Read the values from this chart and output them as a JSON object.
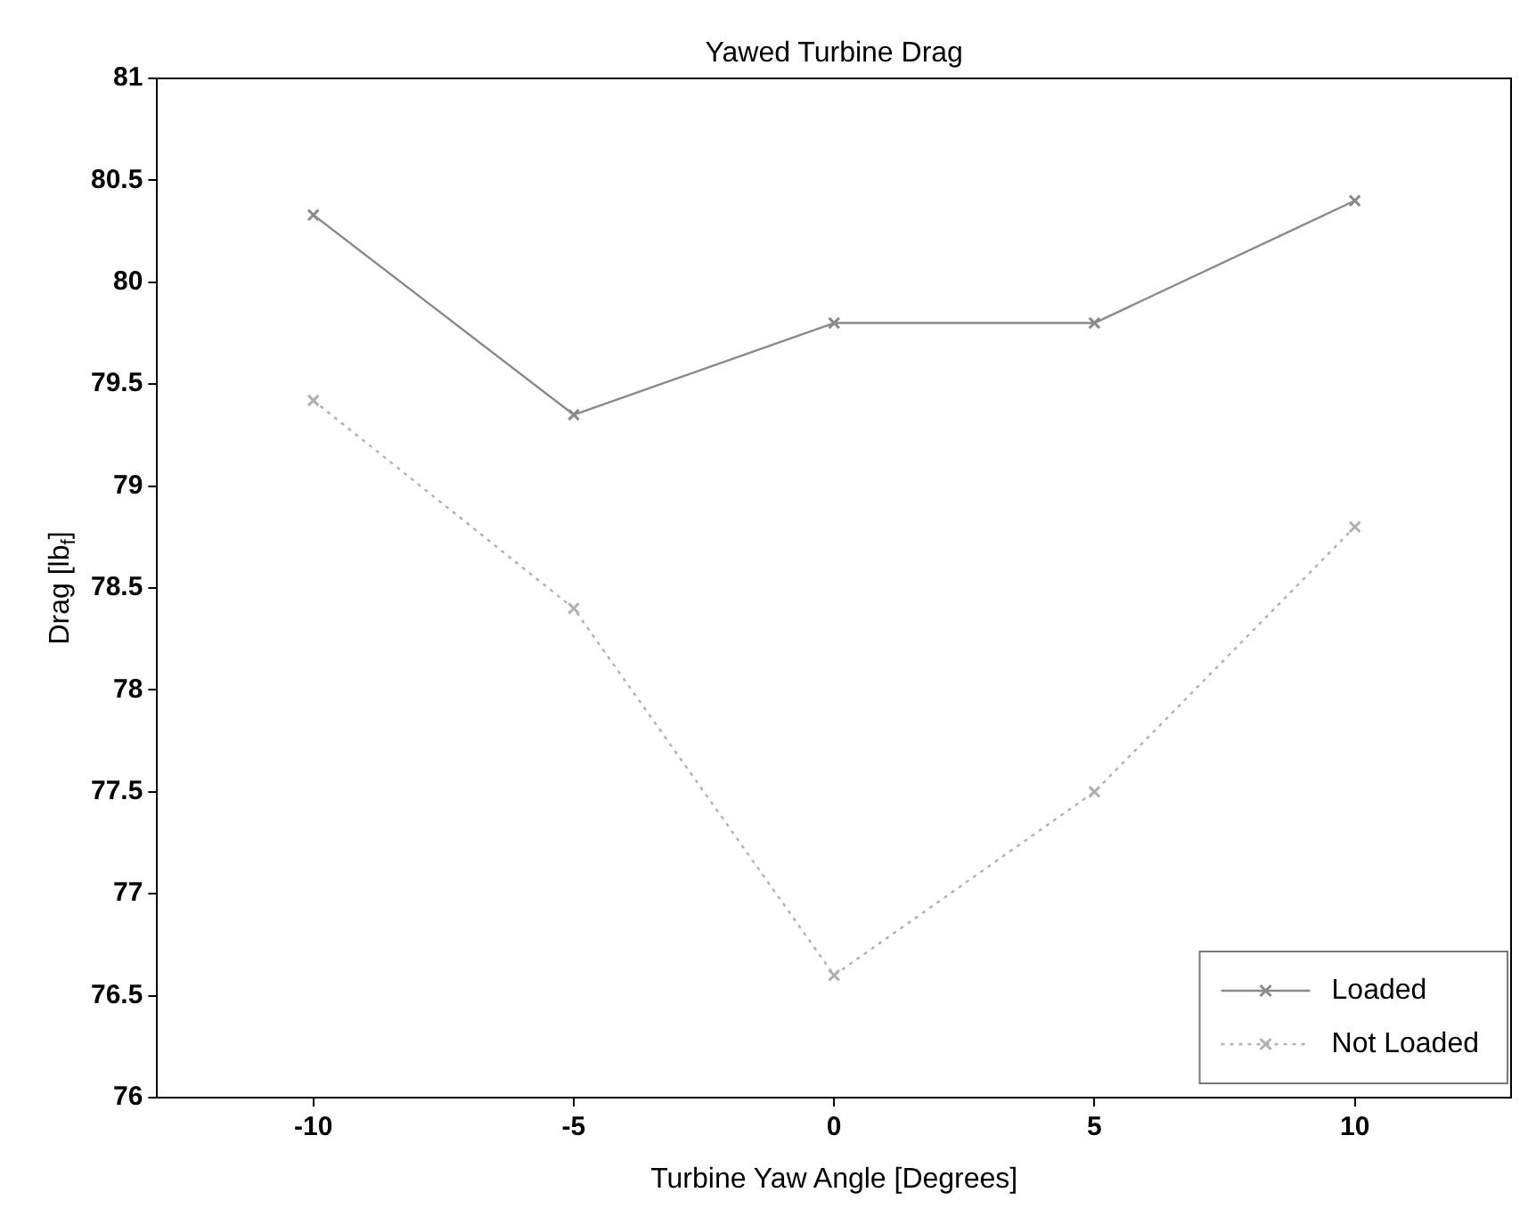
{
  "chart_data": {
    "type": "line",
    "title": "Yawed Turbine Drag",
    "xlabel": "Turbine Yaw Angle [Degrees]",
    "ylabel": "Drag [lb$_{f}$]",
    "x": [
      -10,
      -5,
      0,
      5,
      10
    ],
    "series": [
      {
        "name": "Loaded",
        "color": "#8a8a8a",
        "values": [
          80.33,
          79.35,
          79.8,
          79.8,
          80.4
        ],
        "line_style": "solid"
      },
      {
        "name": "Not Loaded",
        "color": "#b0b0b0",
        "values": [
          79.42,
          78.4,
          76.6,
          77.5,
          78.8
        ],
        "line_style": "dotted"
      }
    ],
    "xlim": [
      -13,
      13
    ],
    "xticks": [
      -10,
      -5,
      0,
      5,
      10
    ],
    "ylim": [
      76,
      81
    ],
    "yticks": [
      76,
      76.5,
      77,
      77.5,
      78,
      78.5,
      79,
      79.5,
      80,
      80.5,
      81
    ],
    "marker": "cross",
    "legend": "bottom right",
    "grid": false
  }
}
